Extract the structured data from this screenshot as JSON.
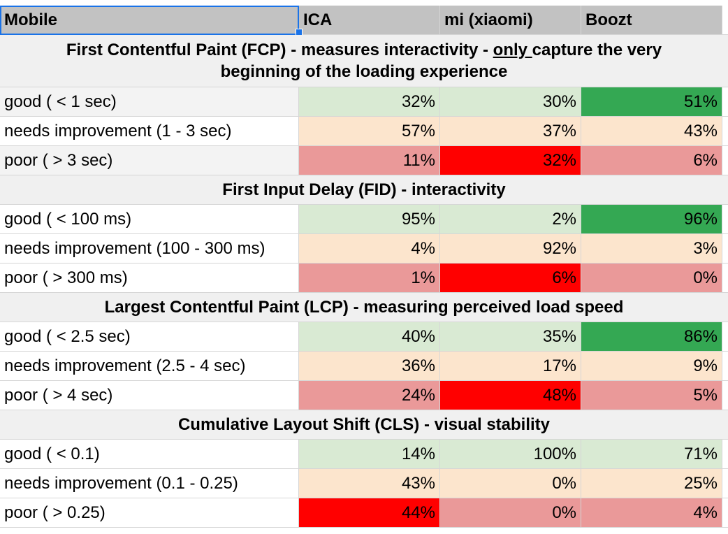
{
  "header": {
    "label": "Mobile",
    "columns": [
      "ICA",
      "mi (xiaomi)",
      "Boozt"
    ]
  },
  "sections": [
    {
      "title_line1_pre": "First Contentful Paint (FCP) - measures interactivity - ",
      "title_line1_underlined": "only ",
      "title_line1_post": "capture the very",
      "title_line2": "beginning of the loading experience",
      "rows": [
        {
          "label": "good ( < 1 sec)",
          "values": [
            "32%",
            "30%",
            "51%"
          ]
        },
        {
          "label": "needs improvement (1 - 3 sec)",
          "values": [
            "57%",
            "37%",
            "43%"
          ]
        },
        {
          "label": "poor ( > 3 sec)",
          "values": [
            "11%",
            "32%",
            "6%"
          ]
        }
      ]
    },
    {
      "title": "First Input Delay (FID) - interactivity",
      "rows": [
        {
          "label": "good ( < 100 ms)",
          "values": [
            "95%",
            "2%",
            "96%"
          ]
        },
        {
          "label": "needs improvement (100 - 300 ms)",
          "values": [
            "4%",
            "92%",
            "3%"
          ]
        },
        {
          "label": "poor ( > 300 ms)",
          "values": [
            "1%",
            "6%",
            "0%"
          ]
        }
      ]
    },
    {
      "title": "Largest Contentful Paint (LCP) - measuring perceived load speed",
      "rows": [
        {
          "label": "good ( < 2.5 sec)",
          "values": [
            "40%",
            "35%",
            "86%"
          ]
        },
        {
          "label": "needs improvement (2.5 - 4 sec)",
          "values": [
            "36%",
            "17%",
            "9%"
          ]
        },
        {
          "label": "poor ( > 4 sec)",
          "values": [
            "24%",
            "48%",
            "5%"
          ]
        }
      ]
    },
    {
      "title": "Cumulative Layout Shift (CLS) - visual stability",
      "rows": [
        {
          "label": "good ( < 0.1)",
          "values": [
            "14%",
            "100%",
            "71%"
          ]
        },
        {
          "label": "needs improvement (0.1 - 0.25)",
          "values": [
            "43%",
            "0%",
            "25%"
          ]
        },
        {
          "label": "poor ( > 0.25)",
          "values": [
            "44%",
            "0%",
            "4%"
          ]
        }
      ]
    }
  ],
  "colors": {
    "header_bg": "#c2c2c2",
    "section_bg": "#f0f0f0",
    "good": "#d9ead3",
    "needs_improvement": "#fce5cd",
    "poor": "#ea9999",
    "best_good": "#34a853",
    "worst_poor": "#ff0000",
    "selection": "#1a73e8"
  }
}
